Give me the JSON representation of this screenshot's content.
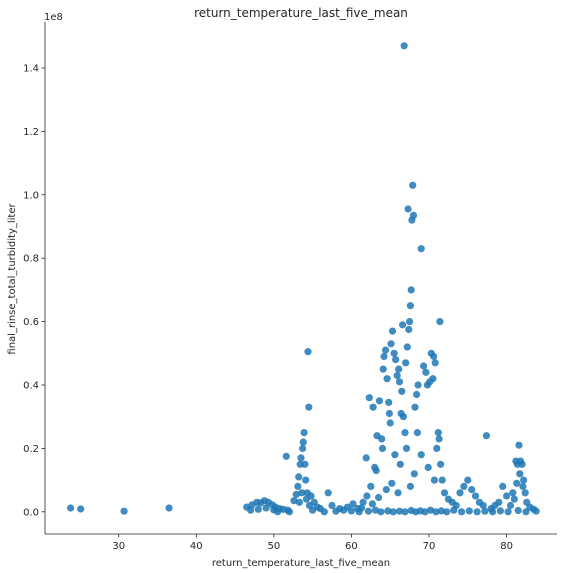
{
  "chart_data": {
    "type": "scatter",
    "title": "return_temperature_last_five_mean",
    "xlabel": "return_temperature_last_five_mean",
    "ylabel": "final_rinse_total_turbidity_liter",
    "y_scale_label": "1e8",
    "xlim": [
      20.5,
      86.5
    ],
    "ylim": [
      -0.07,
      1.545
    ],
    "x_ticks": [
      30,
      40,
      50,
      60,
      70,
      80
    ],
    "x_tick_labels": [
      "30",
      "40",
      "50",
      "60",
      "70",
      "80"
    ],
    "y_ticks": [
      0.0,
      0.2,
      0.4,
      0.6,
      0.8,
      1.0,
      1.2,
      1.4
    ],
    "y_tick_labels": [
      "0.0",
      "0.2",
      "0.4",
      "0.6",
      "0.8",
      "1.0",
      "1.2",
      "1.4"
    ],
    "y_unit": "1e8",
    "grid": false,
    "legend": "none",
    "marker_color": "#1f77b4",
    "points": [
      [
        23.8,
        0.012
      ],
      [
        25.1,
        0.009
      ],
      [
        30.7,
        0.002
      ],
      [
        36.5,
        0.012
      ],
      [
        46.5,
        0.015
      ],
      [
        47.2,
        0.022
      ],
      [
        47.8,
        0.03
      ],
      [
        48.3,
        0.028
      ],
      [
        48.8,
        0.035
      ],
      [
        49.3,
        0.03
      ],
      [
        49.8,
        0.022
      ],
      [
        50.2,
        0.015
      ],
      [
        50.7,
        0.01
      ],
      [
        51.2,
        0.008
      ],
      [
        47.0,
        0.005
      ],
      [
        48.0,
        0.008
      ],
      [
        49.0,
        0.012
      ],
      [
        50.0,
        0.006
      ],
      [
        51.8,
        0.005
      ],
      [
        51.6,
        0.175
      ],
      [
        52.6,
        0.035
      ],
      [
        52.9,
        0.055
      ],
      [
        53.1,
        0.08
      ],
      [
        53.2,
        0.11
      ],
      [
        53.4,
        0.15
      ],
      [
        53.5,
        0.17
      ],
      [
        53.7,
        0.2
      ],
      [
        53.8,
        0.22
      ],
      [
        53.9,
        0.25
      ],
      [
        54.0,
        0.15
      ],
      [
        54.1,
        0.1
      ],
      [
        54.3,
        0.06
      ],
      [
        54.5,
        0.33
      ],
      [
        54.4,
        0.505
      ],
      [
        54.2,
        0.04
      ],
      [
        53.6,
        0.06
      ],
      [
        53.3,
        0.03
      ],
      [
        54.6,
        0.02
      ],
      [
        54.8,
        0.05
      ],
      [
        55.2,
        0.03
      ],
      [
        55.6,
        0.015
      ],
      [
        56.0,
        0.01
      ],
      [
        57.0,
        0.06
      ],
      [
        57.5,
        0.02
      ],
      [
        58.5,
        0.01
      ],
      [
        59.0,
        0.005
      ],
      [
        59.5,
        0.015
      ],
      [
        60.2,
        0.025
      ],
      [
        60.8,
        0.01
      ],
      [
        61.3,
        0.012
      ],
      [
        61.9,
        0.17
      ],
      [
        62.3,
        0.36
      ],
      [
        62.8,
        0.33
      ],
      [
        63.0,
        0.14
      ],
      [
        63.3,
        0.24
      ],
      [
        63.6,
        0.35
      ],
      [
        63.9,
        0.23
      ],
      [
        64.1,
        0.45
      ],
      [
        64.2,
        0.49
      ],
      [
        64.4,
        0.51
      ],
      [
        64.6,
        0.42
      ],
      [
        64.8,
        0.345
      ],
      [
        64.9,
        0.31
      ],
      [
        65.1,
        0.53
      ],
      [
        65.3,
        0.57
      ],
      [
        65.5,
        0.5
      ],
      [
        65.7,
        0.48
      ],
      [
        65.9,
        0.43
      ],
      [
        66.1,
        0.45
      ],
      [
        66.2,
        0.41
      ],
      [
        66.4,
        0.31
      ],
      [
        66.6,
        0.59
      ],
      [
        66.7,
        0.3
      ],
      [
        66.9,
        0.25
      ],
      [
        66.8,
        1.47
      ],
      [
        67.3,
        0.955
      ],
      [
        67.5,
        0.6
      ],
      [
        67.6,
        0.65
      ],
      [
        67.7,
        0.7
      ],
      [
        67.8,
        0.92
      ],
      [
        67.9,
        1.03
      ],
      [
        68.0,
        0.935
      ],
      [
        67.4,
        0.575
      ],
      [
        68.2,
        0.33
      ],
      [
        68.4,
        0.37
      ],
      [
        68.6,
        0.4
      ],
      [
        69.0,
        0.83
      ],
      [
        69.3,
        0.46
      ],
      [
        69.6,
        0.44
      ],
      [
        69.8,
        0.4
      ],
      [
        70.1,
        0.41
      ],
      [
        70.3,
        0.5
      ],
      [
        70.5,
        0.42
      ],
      [
        70.6,
        0.49
      ],
      [
        70.8,
        0.47
      ],
      [
        71.0,
        0.2
      ],
      [
        71.2,
        0.25
      ],
      [
        71.3,
        0.23
      ],
      [
        71.4,
        0.6
      ],
      [
        71.5,
        0.15
      ],
      [
        71.7,
        0.1
      ],
      [
        67.0,
        0.47
      ],
      [
        67.2,
        0.52
      ],
      [
        66.5,
        0.38
      ],
      [
        65.0,
        0.28
      ],
      [
        64.0,
        0.2
      ],
      [
        63.2,
        0.13
      ],
      [
        62.5,
        0.08
      ],
      [
        62.0,
        0.05
      ],
      [
        61.5,
        0.03
      ],
      [
        65.6,
        0.18
      ],
      [
        66.3,
        0.15
      ],
      [
        67.1,
        0.2
      ],
      [
        68.5,
        0.25
      ],
      [
        69.0,
        0.18
      ],
      [
        69.9,
        0.14
      ],
      [
        70.7,
        0.1
      ],
      [
        68.1,
        0.12
      ],
      [
        67.6,
        0.08
      ],
      [
        66.0,
        0.06
      ],
      [
        65.2,
        0.09
      ],
      [
        64.5,
        0.07
      ],
      [
        63.5,
        0.045
      ],
      [
        62.7,
        0.025
      ],
      [
        72.0,
        0.06
      ],
      [
        72.5,
        0.04
      ],
      [
        73.0,
        0.03
      ],
      [
        73.5,
        0.02
      ],
      [
        74.0,
        0.06
      ],
      [
        74.5,
        0.08
      ],
      [
        75.0,
        0.1
      ],
      [
        75.5,
        0.07
      ],
      [
        76.0,
        0.05
      ],
      [
        76.5,
        0.03
      ],
      [
        77.0,
        0.02
      ],
      [
        77.4,
        0.24
      ],
      [
        78.0,
        0.01
      ],
      [
        78.5,
        0.02
      ],
      [
        79.0,
        0.03
      ],
      [
        79.5,
        0.08
      ],
      [
        80.0,
        0.05
      ],
      [
        80.5,
        0.02
      ],
      [
        81.0,
        0.04
      ],
      [
        81.2,
        0.16
      ],
      [
        81.4,
        0.15
      ],
      [
        81.6,
        0.21
      ],
      [
        81.8,
        0.16
      ],
      [
        82.0,
        0.15
      ],
      [
        82.2,
        0.1
      ],
      [
        82.4,
        0.06
      ],
      [
        82.6,
        0.03
      ],
      [
        83.0,
        0.015
      ],
      [
        83.5,
        0.008
      ],
      [
        81.3,
        0.09
      ],
      [
        81.7,
        0.12
      ],
      [
        82.1,
        0.08
      ],
      [
        80.8,
        0.06
      ],
      [
        50.5,
        0.0
      ],
      [
        52.0,
        0.0
      ],
      [
        55.0,
        0.005
      ],
      [
        56.5,
        0.0
      ],
      [
        58.0,
        0.002
      ],
      [
        60.0,
        0.003
      ],
      [
        61.0,
        0.0
      ],
      [
        62.2,
        0.002
      ],
      [
        63.1,
        0.005
      ],
      [
        63.8,
        0.0
      ],
      [
        64.7,
        0.003
      ],
      [
        65.4,
        0.0
      ],
      [
        66.2,
        0.002
      ],
      [
        66.9,
        0.0
      ],
      [
        67.7,
        0.004
      ],
      [
        68.3,
        0.0
      ],
      [
        68.9,
        0.003
      ],
      [
        69.5,
        0.0
      ],
      [
        70.2,
        0.005
      ],
      [
        70.9,
        0.0
      ],
      [
        71.6,
        0.003
      ],
      [
        72.3,
        0.0
      ],
      [
        73.2,
        0.005
      ],
      [
        74.2,
        0.0
      ],
      [
        75.2,
        0.003
      ],
      [
        76.2,
        0.0
      ],
      [
        77.2,
        0.002
      ],
      [
        78.2,
        0.0
      ],
      [
        79.2,
        0.003
      ],
      [
        80.2,
        0.0
      ],
      [
        81.5,
        0.004
      ],
      [
        82.5,
        0.0
      ],
      [
        83.8,
        0.002
      ]
    ]
  }
}
